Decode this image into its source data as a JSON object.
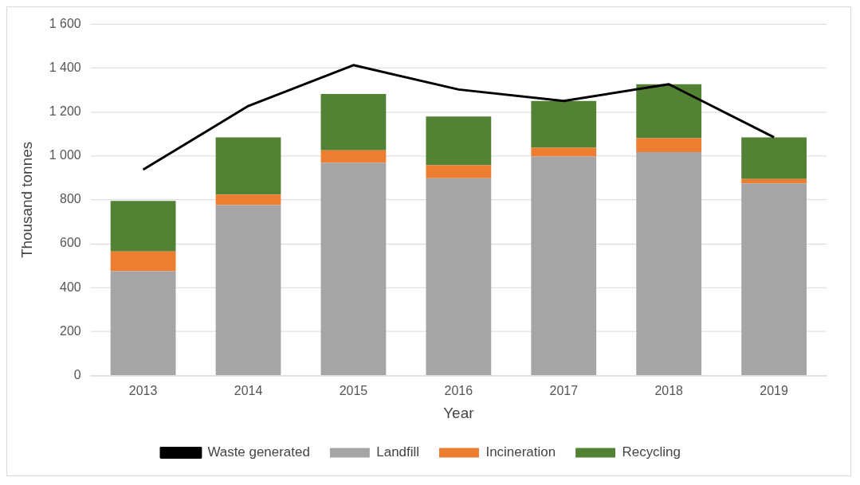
{
  "chart_data": {
    "type": "bar",
    "stacked": true,
    "xlabel": "Year",
    "ylabel": "Thousand tonnes",
    "categories": [
      "2013",
      "2014",
      "2015",
      "2016",
      "2017",
      "2018",
      "2019"
    ],
    "series": [
      {
        "name": "Landfill",
        "color": "#a5a5a5",
        "values": [
          475,
          776,
          970,
          899,
          998,
          1018,
          875
        ]
      },
      {
        "name": "Incineration",
        "color": "#ed7d31",
        "values": [
          90,
          48,
          56,
          59,
          40,
          63,
          20
        ]
      },
      {
        "name": "Recycling",
        "color": "#548235",
        "values": [
          230,
          261,
          257,
          222,
          213,
          246,
          190
        ]
      },
      {
        "name": "Waste generated",
        "type": "line",
        "color": "#000000",
        "values": [
          938,
          1228,
          1414,
          1303,
          1251,
          1327,
          1085
        ]
      }
    ],
    "ylim": [
      0,
      1600
    ],
    "yticks": [
      0,
      200,
      400,
      600,
      800,
      {
        "value": 1000,
        "label": "1 000"
      },
      {
        "value": 1200,
        "label": "1 200"
      },
      {
        "value": 1400,
        "label": "1 400"
      },
      {
        "value": 1600,
        "label": "1 600"
      }
    ],
    "grid": "y",
    "legend": "bottom",
    "marker": "none"
  }
}
